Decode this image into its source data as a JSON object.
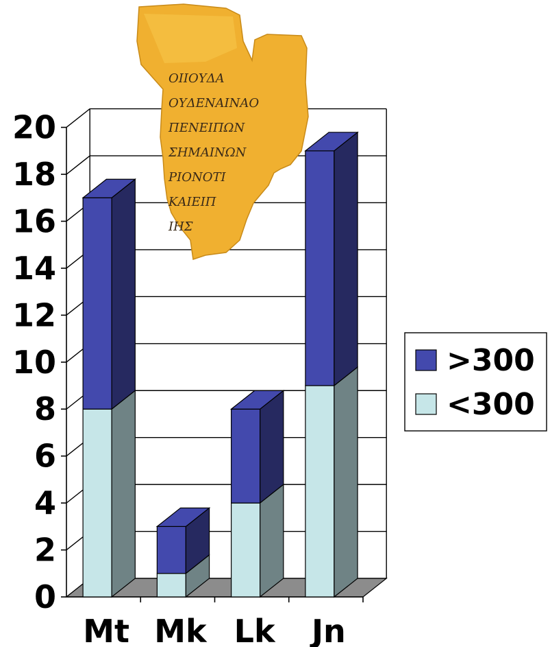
{
  "chart_data": {
    "type": "bar",
    "stacked": true,
    "three_d": true,
    "categories": [
      "Mt",
      "Mk",
      "Lk",
      "Jn"
    ],
    "series": [
      {
        "name": "<300",
        "values": [
          8,
          1,
          4,
          9
        ],
        "color": "#c6e6e8",
        "side_color": "#6f8385"
      },
      {
        "name": ">300",
        "values": [
          9,
          2,
          4,
          10
        ],
        "color": "#4349ad",
        "side_color": "#262960"
      }
    ],
    "ylim": [
      0,
      20
    ],
    "yticks": [
      "0",
      "2",
      "4",
      "6",
      "8",
      "10",
      "12",
      "14",
      "16",
      "18",
      "20"
    ],
    "grid": true,
    "legend": "right",
    "legend_order": [
      ">300",
      "<300"
    ],
    "floor_color": "#8c8c8c",
    "papyrus_fragment": {
      "lines": [
        "ΟΙΙΟΥΔΑ",
        "ΟΥΔΕΝΑΙΝΑΟ",
        "ΠΕΝΕΙΠΩΝ",
        "ΣΗΜΑΙΝΩΝ",
        "ΡΙΟΝΟΤΙ",
        "ΚΑΙΕΙΠ",
        "ΙΗΣ"
      ],
      "color": "#f0b030"
    }
  }
}
